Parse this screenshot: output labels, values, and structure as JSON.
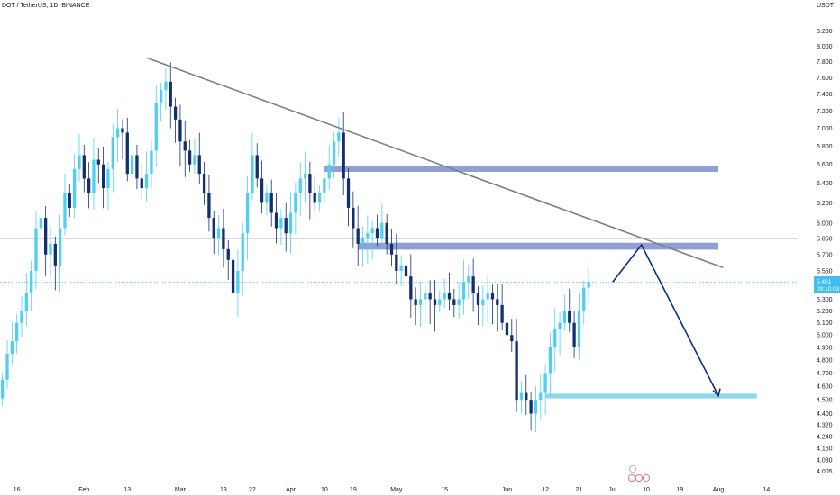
{
  "header": {
    "symbol": "DOT / TetherUS, 1D, BINANCE",
    "currency": "USDT"
  },
  "colors": {
    "candle_up": "#4fd0f0",
    "candle_down": "#142f6e",
    "zone_fill": "#8a9bd3",
    "support_fill": "#87d6ea",
    "trendline": "#7b7e88",
    "projection": "#122e77",
    "price_tag": "#42bdf0",
    "hline": "#b2b5be",
    "axis_text": "#131722"
  },
  "current_price": {
    "value": "5.451",
    "countdown": "09:10:03"
  },
  "event_markers": [
    "earnings-icon",
    "dividends-icon",
    "splits-icon"
  ],
  "chart_data": {
    "type": "candlestick",
    "title": "DOT / TetherUS, 1D, BINANCE",
    "ylabel": "USDT",
    "y_scale": "log",
    "ylim": [
      3.98,
      8.45
    ],
    "y_ticks": [
      "8.200",
      "8.000",
      "7.800",
      "7.600",
      "7.400",
      "7.200",
      "7.000",
      "6.800",
      "6.600",
      "6.400",
      "6.200",
      "6.000",
      "5.850",
      "5.700",
      "5.550",
      "5.300",
      "5.200",
      "5.100",
      "5.000",
      "4.900",
      "4.800",
      "4.700",
      "4.600",
      "4.500",
      "4.400",
      "4.320",
      "4.240",
      "4.160",
      "4.080",
      "4.005"
    ],
    "x_ticks": [
      "16",
      "Feb",
      "13",
      "Mar",
      "13",
      "22",
      "Apr",
      "10",
      "19",
      "May",
      "15",
      "Jun",
      "12",
      "21",
      "Jul",
      "10",
      "19",
      "Aug",
      "14"
    ],
    "grid": false,
    "series": [
      {
        "name": "DOT/USDT",
        "values": [
          4.65,
          4.85,
          4.95,
          5.1,
          5.2,
          5.35,
          5.55,
          5.95,
          6.05,
          5.7,
          5.8,
          5.6,
          5.95,
          6.3,
          6.15,
          6.55,
          6.7,
          6.45,
          6.3,
          6.65,
          6.6,
          6.35,
          6.55,
          6.9,
          7.0,
          6.95,
          6.5,
          6.7,
          6.45,
          6.35,
          6.5,
          6.75,
          7.3,
          7.45,
          7.55,
          7.25,
          7.1,
          6.85,
          6.75,
          6.6,
          6.7,
          6.5,
          6.3,
          6.05,
          5.85,
          5.95,
          5.75,
          5.65,
          5.35,
          5.55,
          5.9,
          6.3,
          6.7,
          6.45,
          6.2,
          6.3,
          6.1,
          5.95,
          6.05,
          5.9,
          6.1,
          6.3,
          6.45,
          6.5,
          6.3,
          6.2,
          6.3,
          6.45,
          6.6,
          6.85,
          6.95,
          6.45,
          6.15,
          5.95,
          5.8,
          5.85,
          5.9,
          5.95,
          5.85,
          6.0,
          5.8,
          5.7,
          5.55,
          5.6,
          5.5,
          5.3,
          5.25,
          5.3,
          5.35,
          5.3,
          5.25,
          5.3,
          5.35,
          5.3,
          5.25,
          5.3,
          5.45,
          5.5,
          5.35,
          5.25,
          5.3,
          5.35,
          5.3,
          5.25,
          5.1,
          5.0,
          4.95,
          4.5,
          4.55,
          4.5,
          4.4,
          4.5,
          4.55,
          4.7,
          4.9,
          5.05,
          5.1,
          5.2,
          5.1,
          4.9,
          5.2,
          5.4,
          5.45
        ]
      }
    ],
    "zones": [
      {
        "name": "resistance-zone-upper",
        "y_top": 6.58,
        "y_bottom": 6.52,
        "x_start": 67,
        "x_end": 149
      },
      {
        "name": "resistance-zone-lower",
        "y_top": 5.81,
        "y_bottom": 5.745,
        "x_start": 74,
        "x_end": 149
      },
      {
        "name": "support-zone",
        "y_top": 4.545,
        "y_bottom": 4.51,
        "x_start": 113,
        "x_end": 157
      }
    ],
    "horizontal_lines": [
      {
        "y": 5.85,
        "style": "solid"
      },
      {
        "y": 5.45,
        "style": "dotted"
      }
    ],
    "trendline": {
      "from": [
        30,
        7.85
      ],
      "to": [
        150,
        5.58
      ]
    },
    "projection_path": [
      [
        127,
        5.45
      ],
      [
        133,
        5.79
      ],
      [
        149,
        4.53
      ]
    ],
    "x_tick_index": [
      3,
      17,
      26,
      37,
      46,
      52,
      60,
      67,
      73,
      82,
      92,
      105,
      113,
      120,
      127,
      134,
      141,
      149,
      159
    ],
    "x_max": 166
  }
}
